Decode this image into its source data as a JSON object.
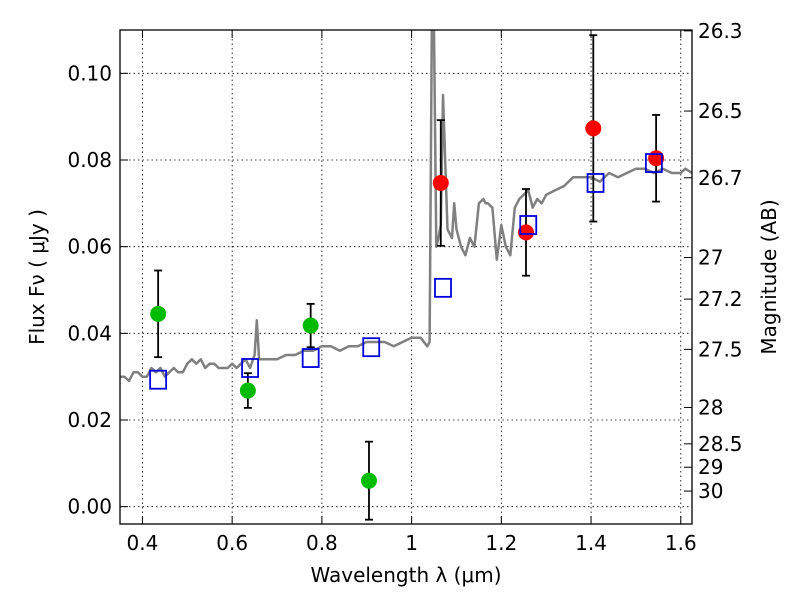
{
  "chart_data": {
    "type": "scatter",
    "xlabel": "Wavelength  λ (μm)",
    "ylabel": "Flux  Fν  ( μJy )",
    "ylabel_right": "Magnitude (AB)",
    "xlim": [
      0.35,
      1.625
    ],
    "ylim": [
      -0.004,
      0.11
    ],
    "grid": true,
    "x_ticks": [
      0.4,
      0.6,
      0.8,
      1.0,
      1.2,
      1.4,
      1.6
    ],
    "x_tick_labels": [
      "0.4",
      "0.6",
      "0.8",
      "1",
      "1.2",
      "1.4",
      "1.6"
    ],
    "y_ticks": [
      0.0,
      0.02,
      0.04,
      0.06,
      0.08,
      0.1
    ],
    "y_tick_labels": [
      "0.00",
      "0.02",
      "0.04",
      "0.06",
      "0.08",
      "0.10"
    ],
    "right_ticks": [
      {
        "label": "26.3",
        "flux": 0.1098
      },
      {
        "label": "26.5",
        "flux": 0.0913
      },
      {
        "label": "26.7",
        "flux": 0.0759
      },
      {
        "label": "27",
        "flux": 0.0575
      },
      {
        "label": "27.2",
        "flux": 0.0479
      },
      {
        "label": "27.5",
        "flux": 0.0363
      },
      {
        "label": "28",
        "flux": 0.0229
      },
      {
        "label": "28.5",
        "flux": 0.0145
      },
      {
        "label": "29",
        "flux": 0.0091
      },
      {
        "label": "30",
        "flux": 0.0036
      }
    ],
    "series": [
      {
        "kind": "spectrum",
        "color": "#808080",
        "x": [
          0.35,
          0.36,
          0.37,
          0.38,
          0.39,
          0.4,
          0.41,
          0.42,
          0.43,
          0.44,
          0.45,
          0.46,
          0.47,
          0.48,
          0.49,
          0.5,
          0.51,
          0.52,
          0.53,
          0.54,
          0.55,
          0.56,
          0.57,
          0.58,
          0.59,
          0.6,
          0.61,
          0.62,
          0.63,
          0.64,
          0.65,
          0.655,
          0.66,
          0.67,
          0.68,
          0.69,
          0.7,
          0.72,
          0.74,
          0.76,
          0.78,
          0.8,
          0.82,
          0.84,
          0.86,
          0.88,
          0.9,
          0.92,
          0.94,
          0.96,
          0.98,
          1.0,
          1.02,
          1.035,
          1.04,
          1.045,
          1.05,
          1.055,
          1.06,
          1.065,
          1.07,
          1.08,
          1.09,
          1.095,
          1.1,
          1.11,
          1.12,
          1.13,
          1.14,
          1.15,
          1.16,
          1.165,
          1.17,
          1.18,
          1.19,
          1.2,
          1.21,
          1.22,
          1.23,
          1.24,
          1.25,
          1.26,
          1.27,
          1.28,
          1.29,
          1.3,
          1.32,
          1.34,
          1.36,
          1.38,
          1.4,
          1.42,
          1.44,
          1.46,
          1.48,
          1.5,
          1.52,
          1.54,
          1.56,
          1.58,
          1.6,
          1.61,
          1.625
        ],
        "y": [
          0.03,
          0.03,
          0.029,
          0.031,
          0.031,
          0.03,
          0.03,
          0.032,
          0.031,
          0.032,
          0.03,
          0.031,
          0.032,
          0.031,
          0.031,
          0.033,
          0.034,
          0.033,
          0.034,
          0.032,
          0.033,
          0.033,
          0.032,
          0.032,
          0.032,
          0.033,
          0.032,
          0.033,
          0.034,
          0.032,
          0.035,
          0.043,
          0.034,
          0.034,
          0.034,
          0.034,
          0.034,
          0.035,
          0.035,
          0.036,
          0.036,
          0.037,
          0.037,
          0.036,
          0.037,
          0.037,
          0.038,
          0.038,
          0.038,
          0.037,
          0.038,
          0.039,
          0.039,
          0.037,
          0.038,
          0.11,
          0.11,
          0.06,
          0.062,
          0.065,
          0.095,
          0.064,
          0.062,
          0.07,
          0.064,
          0.06,
          0.058,
          0.062,
          0.06,
          0.07,
          0.071,
          0.07,
          0.07,
          0.069,
          0.057,
          0.065,
          0.06,
          0.058,
          0.069,
          0.071,
          0.072,
          0.073,
          0.069,
          0.071,
          0.07,
          0.072,
          0.073,
          0.074,
          0.076,
          0.076,
          0.076,
          0.075,
          0.077,
          0.076,
          0.077,
          0.078,
          0.078,
          0.077,
          0.078,
          0.077,
          0.077,
          0.078,
          0.077
        ]
      },
      {
        "kind": "markers",
        "shape": "circle",
        "color": "#00bb00",
        "x": [
          0.435,
          0.635,
          0.775,
          0.905
        ],
        "y": [
          0.0445,
          0.0268,
          0.0418,
          0.006
        ],
        "err": [
          0.01,
          0.004,
          0.005,
          0.009
        ]
      },
      {
        "kind": "markers",
        "shape": "circle",
        "color": "#ff0000",
        "x": [
          1.065,
          1.255,
          1.405,
          1.545
        ],
        "y": [
          0.0747,
          0.0633,
          0.0873,
          0.0804
        ],
        "err": [
          0.0145,
          0.01,
          0.0215,
          0.01
        ]
      },
      {
        "kind": "markers",
        "shape": "open-square",
        "color": "#0000dd",
        "x": [
          0.435,
          0.64,
          0.775,
          0.91,
          1.07,
          1.26,
          1.41,
          1.54
        ],
        "y": [
          0.0293,
          0.032,
          0.0343,
          0.0368,
          0.0505,
          0.065,
          0.0747,
          0.0793
        ]
      }
    ]
  }
}
